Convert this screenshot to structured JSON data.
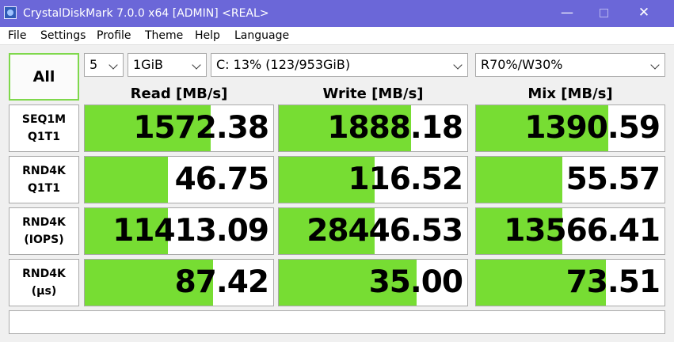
{
  "window": {
    "title": "CrystalDiskMark 7.0.0 x64 [ADMIN] <REAL>",
    "minimize": "—",
    "close": "✕"
  },
  "menu": {
    "items": [
      "File",
      "Settings",
      "Profile",
      "Theme",
      "Help",
      "Language"
    ]
  },
  "toolbar": {
    "all_label": "All",
    "count": "5",
    "size": "1GiB",
    "drive": "C: 13% (123/953GiB)",
    "mix_ratio": "R70%/W30%"
  },
  "columns": {
    "read": "Read [MB/s]",
    "write": "Write [MB/s]",
    "mix": "Mix [MB/s]"
  },
  "rows": [
    {
      "line1": "SEQ1M",
      "line2": "Q1T1",
      "read": "1572.38",
      "write": "1888.18",
      "mix": "1390.59",
      "read_fill": 0.67,
      "write_fill": 0.7,
      "mix_fill": 0.7
    },
    {
      "line1": "RND4K",
      "line2": "Q1T1",
      "read": "46.75",
      "write": "116.52",
      "mix": "55.57",
      "read_fill": 0.44,
      "write_fill": 0.51,
      "mix_fill": 0.46
    },
    {
      "line1": "RND4K",
      "line2": "(IOPS)",
      "read": "11413.09",
      "write": "28446.53",
      "mix": "13566.41",
      "read_fill": 0.44,
      "write_fill": 0.51,
      "mix_fill": 0.46
    },
    {
      "line1": "RND4K",
      "line2": "(µs)",
      "read": "87.42",
      "write": "35.00",
      "mix": "73.51",
      "read_fill": 0.68,
      "write_fill": 0.73,
      "mix_fill": 0.69
    }
  ],
  "status": {
    "text": ""
  },
  "colors": {
    "titlebar": "#6b67d8",
    "bar_fill": "#77dd33",
    "all_border": "#7fd84c"
  }
}
